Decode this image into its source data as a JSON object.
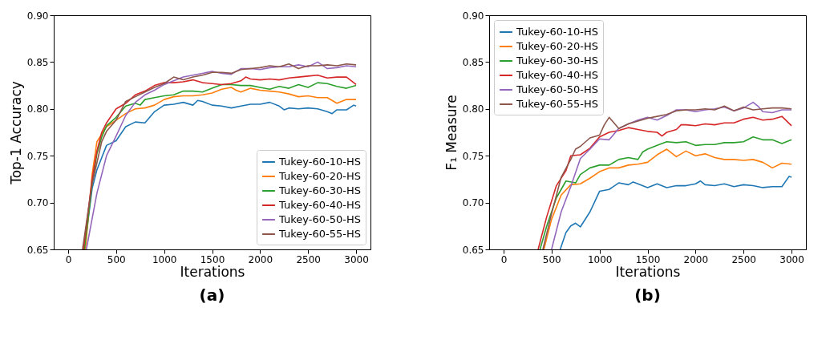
{
  "chart_data": [
    {
      "type": "line",
      "title": "(a)",
      "xlabel": "Iterations",
      "ylabel": "Top-1 Accuracy",
      "xlim": [
        -150,
        3150
      ],
      "ylim": [
        0.65,
        0.9
      ],
      "xticks": [
        0,
        500,
        1000,
        1500,
        2000,
        2500,
        3000
      ],
      "yticks": [
        0.65,
        {
          "value": 0.7,
          "label": "0.70"
        },
        0.75,
        {
          "value": 0.8,
          "label": "0.80"
        },
        0.85,
        {
          "value": 0.9,
          "label": "0.90"
        }
      ],
      "legend": "bottom right",
      "grid": false,
      "marker": "none",
      "line_style": "solid",
      "series": [
        {
          "name": "Tukey-60-10-HS",
          "color": "#1f77b4",
          "x": [
            170,
            250,
            300,
            400,
            500,
            600,
            700,
            800,
            900,
            1000,
            1100,
            1200,
            1300,
            1350,
            1400,
            1500,
            1600,
            1700,
            1800,
            1900,
            2000,
            2100,
            2200,
            2250,
            2300,
            2400,
            2500,
            2600,
            2700,
            2750,
            2800,
            2900,
            2975,
            3000
          ],
          "values": [
            0.65,
            0.715,
            0.735,
            0.761,
            0.766,
            0.781,
            0.786,
            0.785,
            0.797,
            0.804,
            0.805,
            0.807,
            0.804,
            0.809,
            0.808,
            0.804,
            0.803,
            0.801,
            0.803,
            0.805,
            0.805,
            0.807,
            0.803,
            0.799,
            0.801,
            0.8,
            0.801,
            0.8,
            0.797,
            0.795,
            0.799,
            0.799,
            0.804,
            0.803
          ]
        },
        {
          "name": "Tukey-60-20-HS",
          "color": "#ff7f0e",
          "x": [
            180,
            250,
            300,
            400,
            500,
            600,
            700,
            800,
            900,
            1000,
            1100,
            1200,
            1300,
            1400,
            1500,
            1600,
            1700,
            1750,
            1800,
            1900,
            2000,
            2100,
            2200,
            2300,
            2400,
            2500,
            2600,
            2700,
            2800,
            2900,
            3000
          ],
          "values": [
            0.65,
            0.73,
            0.765,
            0.781,
            0.788,
            0.795,
            0.8,
            0.801,
            0.804,
            0.81,
            0.813,
            0.814,
            0.814,
            0.815,
            0.817,
            0.821,
            0.823,
            0.82,
            0.818,
            0.822,
            0.82,
            0.819,
            0.818,
            0.816,
            0.813,
            0.814,
            0.812,
            0.812,
            0.806,
            0.81,
            0.81
          ]
        },
        {
          "name": "Tukey-60-30-HS",
          "color": "#2ca02c",
          "x": [
            170,
            250,
            300,
            350,
            400,
            500,
            600,
            700,
            750,
            800,
            900,
            1000,
            1100,
            1200,
            1300,
            1400,
            1500,
            1600,
            1700,
            1800,
            1900,
            2000,
            2100,
            2200,
            2300,
            2400,
            2500,
            2600,
            2700,
            2800,
            2900,
            3000
          ],
          "values": [
            0.65,
            0.72,
            0.752,
            0.77,
            0.782,
            0.791,
            0.803,
            0.806,
            0.804,
            0.81,
            0.812,
            0.814,
            0.815,
            0.819,
            0.819,
            0.818,
            0.822,
            0.826,
            0.826,
            0.825,
            0.825,
            0.823,
            0.821,
            0.824,
            0.822,
            0.826,
            0.823,
            0.828,
            0.827,
            0.824,
            0.822,
            0.825
          ]
        },
        {
          "name": "Tukey-60-40-HS",
          "color": "#d62728",
          "x": [
            160,
            250,
            300,
            350,
            400,
            500,
            600,
            700,
            800,
            900,
            1000,
            1100,
            1200,
            1300,
            1400,
            1500,
            1600,
            1700,
            1800,
            1850,
            1900,
            2000,
            2100,
            2200,
            2300,
            2400,
            2500,
            2600,
            2700,
            2800,
            2900,
            3000
          ],
          "values": [
            0.65,
            0.725,
            0.755,
            0.775,
            0.785,
            0.8,
            0.806,
            0.815,
            0.819,
            0.825,
            0.828,
            0.828,
            0.829,
            0.831,
            0.828,
            0.827,
            0.826,
            0.827,
            0.83,
            0.834,
            0.832,
            0.831,
            0.832,
            0.831,
            0.833,
            0.834,
            0.835,
            0.836,
            0.833,
            0.834,
            0.834,
            0.826
          ]
        },
        {
          "name": "Tukey-60-50-HS",
          "color": "#9467bd",
          "x": [
            190,
            300,
            400,
            500,
            600,
            700,
            800,
            900,
            1000,
            1100,
            1200,
            1300,
            1400,
            1500,
            1600,
            1700,
            1800,
            1900,
            2000,
            2100,
            2200,
            2300,
            2400,
            2500,
            2600,
            2700,
            2800,
            2900,
            3000
          ],
          "values": [
            0.65,
            0.71,
            0.75,
            0.771,
            0.793,
            0.807,
            0.815,
            0.82,
            0.826,
            0.83,
            0.834,
            0.836,
            0.838,
            0.84,
            0.838,
            0.837,
            0.843,
            0.843,
            0.842,
            0.844,
            0.845,
            0.845,
            0.847,
            0.845,
            0.85,
            0.843,
            0.844,
            0.846,
            0.845
          ]
        },
        {
          "name": "Tukey-60-55-HS",
          "color": "#8c564b",
          "x": [
            150,
            250,
            350,
            400,
            500,
            600,
            700,
            800,
            900,
            1000,
            1100,
            1200,
            1300,
            1400,
            1500,
            1600,
            1700,
            1800,
            1900,
            2000,
            2100,
            2200,
            2300,
            2400,
            2500,
            2600,
            2700,
            2800,
            2900,
            3000
          ],
          "values": [
            0.65,
            0.72,
            0.765,
            0.776,
            0.788,
            0.808,
            0.813,
            0.818,
            0.823,
            0.827,
            0.834,
            0.831,
            0.834,
            0.836,
            0.839,
            0.839,
            0.838,
            0.842,
            0.843,
            0.844,
            0.846,
            0.845,
            0.848,
            0.843,
            0.846,
            0.846,
            0.847,
            0.846,
            0.848,
            0.847
          ]
        }
      ]
    },
    {
      "type": "line",
      "title": "(b)",
      "xlabel": "Iterations",
      "ylabel": "F₁ Measure",
      "xlim": [
        -150,
        3150
      ],
      "ylim": [
        0.65,
        0.9
      ],
      "xticks": [
        0,
        500,
        1000,
        1500,
        2000,
        2500,
        3000
      ],
      "yticks": [
        0.65,
        {
          "value": 0.7,
          "label": "0.70"
        },
        0.75,
        {
          "value": 0.8,
          "label": "0.80"
        },
        0.85,
        {
          "value": 0.9,
          "label": "0.90"
        }
      ],
      "legend": "top left",
      "grid": false,
      "marker": "none",
      "line_style": "solid",
      "series": [
        {
          "name": "Tukey-60-10-HS",
          "color": "#1f77b4",
          "x": [
            590,
            650,
            700,
            750,
            800,
            900,
            1000,
            1100,
            1200,
            1300,
            1350,
            1400,
            1500,
            1600,
            1700,
            1800,
            1900,
            2000,
            2050,
            2100,
            2200,
            2300,
            2400,
            2500,
            2600,
            2700,
            2800,
            2900,
            2975,
            3000
          ],
          "values": [
            0.65,
            0.668,
            0.675,
            0.678,
            0.674,
            0.69,
            0.712,
            0.714,
            0.721,
            0.719,
            0.722,
            0.72,
            0.716,
            0.72,
            0.716,
            0.718,
            0.718,
            0.72,
            0.723,
            0.719,
            0.718,
            0.72,
            0.717,
            0.719,
            0.718,
            0.716,
            0.717,
            0.717,
            0.728,
            0.727
          ]
        },
        {
          "name": "Tukey-60-20-HS",
          "color": "#ff7f0e",
          "x": [
            420,
            500,
            600,
            700,
            800,
            900,
            1000,
            1100,
            1200,
            1300,
            1400,
            1500,
            1600,
            1700,
            1800,
            1900,
            2000,
            2100,
            2200,
            2300,
            2400,
            2500,
            2600,
            2700,
            2800,
            2900,
            3000
          ],
          "values": [
            0.65,
            0.682,
            0.708,
            0.719,
            0.72,
            0.726,
            0.733,
            0.737,
            0.737,
            0.74,
            0.741,
            0.743,
            0.751,
            0.757,
            0.749,
            0.755,
            0.75,
            0.752,
            0.748,
            0.746,
            0.746,
            0.745,
            0.746,
            0.743,
            0.737,
            0.742,
            0.741
          ]
        },
        {
          "name": "Tukey-60-30-HS",
          "color": "#2ca02c",
          "x": [
            380,
            450,
            550,
            650,
            750,
            800,
            900,
            1000,
            1100,
            1200,
            1300,
            1400,
            1450,
            1500,
            1600,
            1700,
            1800,
            1900,
            2000,
            2100,
            2200,
            2300,
            2400,
            2500,
            2600,
            2700,
            2800,
            2900,
            3000
          ],
          "values": [
            0.65,
            0.675,
            0.705,
            0.723,
            0.721,
            0.73,
            0.737,
            0.74,
            0.74,
            0.746,
            0.748,
            0.746,
            0.754,
            0.757,
            0.761,
            0.765,
            0.764,
            0.765,
            0.761,
            0.762,
            0.762,
            0.764,
            0.764,
            0.765,
            0.77,
            0.767,
            0.767,
            0.763,
            0.767
          ]
        },
        {
          "name": "Tukey-60-40-HS",
          "color": "#d62728",
          "x": [
            360,
            450,
            550,
            650,
            700,
            800,
            900,
            1000,
            1100,
            1200,
            1300,
            1400,
            1500,
            1600,
            1650,
            1700,
            1800,
            1850,
            1900,
            2000,
            2100,
            2200,
            2300,
            2400,
            2500,
            2600,
            2700,
            2800,
            2900,
            3000
          ],
          "values": [
            0.65,
            0.685,
            0.718,
            0.734,
            0.75,
            0.751,
            0.758,
            0.77,
            0.775,
            0.777,
            0.78,
            0.778,
            0.776,
            0.775,
            0.771,
            0.775,
            0.778,
            0.783,
            0.783,
            0.782,
            0.784,
            0.783,
            0.785,
            0.785,
            0.789,
            0.791,
            0.788,
            0.789,
            0.792,
            0.782
          ]
        },
        {
          "name": "Tukey-60-50-HS",
          "color": "#9467bd",
          "x": [
            500,
            600,
            700,
            800,
            900,
            1000,
            1100,
            1200,
            1300,
            1400,
            1500,
            1600,
            1700,
            1800,
            1900,
            2000,
            2100,
            2200,
            2300,
            2400,
            2500,
            2600,
            2650,
            2700,
            2800,
            2900,
            3000
          ],
          "values": [
            0.65,
            0.69,
            0.717,
            0.747,
            0.757,
            0.768,
            0.767,
            0.779,
            0.784,
            0.788,
            0.791,
            0.788,
            0.793,
            0.799,
            0.799,
            0.797,
            0.799,
            0.8,
            0.802,
            0.798,
            0.801,
            0.807,
            0.803,
            0.797,
            0.796,
            0.799,
            0.799
          ]
        },
        {
          "name": "Tukey-60-55-HS",
          "color": "#8c564b",
          "x": [
            410,
            500,
            600,
            700,
            750,
            800,
            900,
            1000,
            1050,
            1100,
            1200,
            1300,
            1400,
            1500,
            1600,
            1700,
            1800,
            1900,
            2000,
            2100,
            2200,
            2300,
            2400,
            2500,
            2600,
            2700,
            2800,
            2900,
            3000
          ],
          "values": [
            0.65,
            0.688,
            0.727,
            0.746,
            0.757,
            0.76,
            0.769,
            0.772,
            0.783,
            0.791,
            0.779,
            0.784,
            0.787,
            0.79,
            0.792,
            0.794,
            0.798,
            0.799,
            0.799,
            0.8,
            0.799,
            0.803,
            0.798,
            0.802,
            0.799,
            0.8,
            0.801,
            0.801,
            0.8
          ]
        }
      ]
    }
  ]
}
